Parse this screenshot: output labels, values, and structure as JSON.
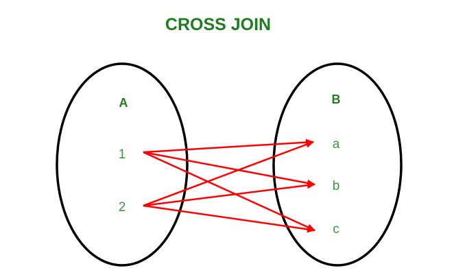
{
  "title": "CROSS JOIN",
  "colors": {
    "title": "#1e7d1e",
    "set_label": "#1e7d1e",
    "element_label": "#3a9a3a",
    "arrow": "#ff0000",
    "ellipse": "#000000",
    "background": "#ffffff"
  },
  "sets": [
    {
      "id": "A",
      "label": "A",
      "elements": [
        "1",
        "2"
      ]
    },
    {
      "id": "B",
      "label": "B",
      "elements": [
        "a",
        "b",
        "c"
      ]
    }
  ],
  "mappings": [
    {
      "from": "1",
      "to": "a"
    },
    {
      "from": "1",
      "to": "b"
    },
    {
      "from": "1",
      "to": "c"
    },
    {
      "from": "2",
      "to": "a"
    },
    {
      "from": "2",
      "to": "b"
    },
    {
      "from": "2",
      "to": "c"
    }
  ]
}
